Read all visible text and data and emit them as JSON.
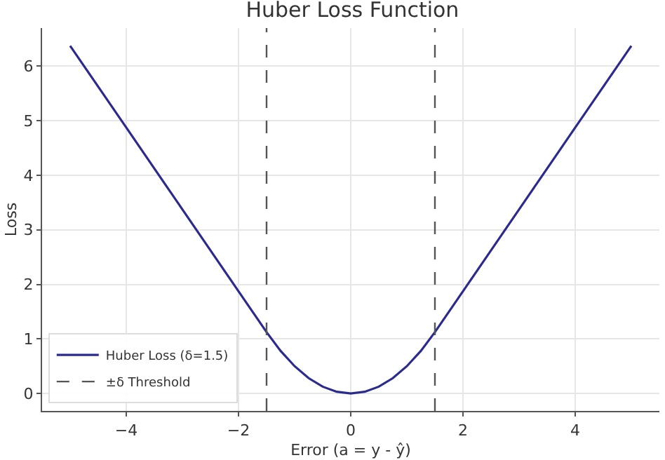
{
  "chart_data": {
    "type": "line",
    "title": "Huber Loss Function",
    "xlabel": "Error (a = y - ŷ)",
    "ylabel": "Loss",
    "x": [
      -5,
      -4,
      -3,
      -2,
      -1.5,
      -1.25,
      -1,
      -0.75,
      -0.5,
      -0.25,
      0,
      0.25,
      0.5,
      0.75,
      1,
      1.25,
      1.5,
      2,
      3,
      4,
      5
    ],
    "series": [
      {
        "name": "Huber Loss (δ=1.5)",
        "color": "#2b2b8f",
        "values": [
          6.375,
          4.875,
          3.375,
          1.875,
          1.125,
          0.781,
          0.5,
          0.281,
          0.125,
          0.031,
          0,
          0.031,
          0.125,
          0.281,
          0.5,
          0.781,
          1.125,
          1.875,
          3.375,
          4.875,
          6.375
        ]
      }
    ],
    "ref_lines": [
      {
        "axis": "x",
        "value": -1.5,
        "label": "±δ Threshold",
        "color": "#555555",
        "line_style": "dashed"
      },
      {
        "axis": "x",
        "value": 1.5,
        "label": null,
        "color": "#555555",
        "line_style": "dashed"
      }
    ],
    "xlim": [
      -5.5,
      5.5
    ],
    "xticks": [
      {
        "value": -4,
        "label": "−4"
      },
      {
        "value": -2,
        "label": "−2"
      },
      0,
      2,
      4
    ],
    "ylim": [
      -0.32,
      6.7
    ],
    "yticks": [
      0,
      1,
      2,
      3,
      4,
      5,
      6
    ],
    "grid": true,
    "legend": "bottom left",
    "line_style": "solid",
    "marker": "none"
  }
}
